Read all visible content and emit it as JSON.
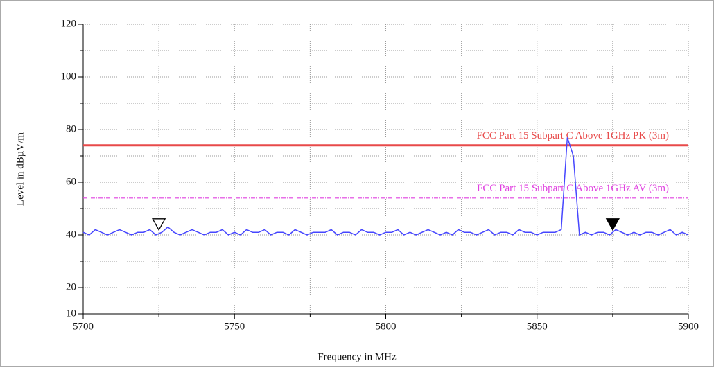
{
  "chart_data": {
    "type": "line",
    "xlabel": "Frequency in MHz",
    "ylabel": "Level in dBµV/m",
    "xlim": [
      5700,
      5900
    ],
    "xticks": [
      5700,
      5750,
      5800,
      5850,
      5900
    ],
    "xminor": [
      5725,
      5775,
      5825,
      5875
    ],
    "ylim": [
      10,
      120
    ],
    "yticks": [
      10,
      20,
      40,
      60,
      80,
      100,
      120
    ],
    "yminor": [
      30,
      50,
      70,
      90,
      110
    ],
    "grid": true,
    "limits": [
      {
        "name": "FCC Part 15 Subpart C Above 1GHz  PK (3m)",
        "value": 74,
        "color": "#e84a4a",
        "dash": "none"
      },
      {
        "name": "FCC Part 15 Subpart C Above 1GHz  AV (3m)",
        "value": 54,
        "color": "#e040e0",
        "dash": "6 2 1 2"
      }
    ],
    "markers": [
      {
        "x": 5725,
        "y": 44,
        "filled": false
      },
      {
        "x": 5875,
        "y": 44,
        "filled": true
      }
    ],
    "series": [
      {
        "color": "#4646ff",
        "x": [
          5700,
          5702,
          5704,
          5706,
          5708,
          5710,
          5712,
          5714,
          5716,
          5718,
          5720,
          5722,
          5724,
          5726,
          5728,
          5730,
          5732,
          5734,
          5736,
          5738,
          5740,
          5742,
          5744,
          5746,
          5748,
          5750,
          5752,
          5754,
          5756,
          5758,
          5760,
          5762,
          5764,
          5766,
          5768,
          5770,
          5772,
          5774,
          5776,
          5778,
          5780,
          5782,
          5784,
          5786,
          5788,
          5790,
          5792,
          5794,
          5796,
          5798,
          5800,
          5802,
          5804,
          5806,
          5808,
          5810,
          5812,
          5814,
          5816,
          5818,
          5820,
          5822,
          5824,
          5826,
          5828,
          5830,
          5832,
          5834,
          5836,
          5838,
          5840,
          5842,
          5844,
          5846,
          5848,
          5850,
          5852,
          5854,
          5856,
          5858,
          5860,
          5862,
          5864,
          5866,
          5868,
          5870,
          5872,
          5874,
          5876,
          5878,
          5880,
          5882,
          5884,
          5886,
          5888,
          5890,
          5892,
          5894,
          5896,
          5898,
          5900
        ],
        "values": [
          41,
          40,
          42,
          41,
          40,
          41,
          42,
          41,
          40,
          41,
          41,
          42,
          40,
          41,
          43,
          41,
          40,
          41,
          42,
          41,
          40,
          41,
          41,
          42,
          40,
          41,
          40,
          42,
          41,
          41,
          42,
          40,
          41,
          41,
          40,
          42,
          41,
          40,
          41,
          41,
          41,
          42,
          40,
          41,
          41,
          40,
          42,
          41,
          41,
          40,
          41,
          41,
          42,
          40,
          41,
          40,
          41,
          42,
          41,
          40,
          41,
          40,
          42,
          41,
          41,
          40,
          41,
          42,
          40,
          41,
          41,
          40,
          42,
          41,
          41,
          40,
          41,
          41,
          41,
          42,
          77,
          70,
          40,
          41,
          40,
          41,
          41,
          40,
          42,
          41,
          40,
          41,
          40,
          41,
          41,
          40,
          41,
          42,
          40,
          41,
          40
        ]
      }
    ]
  }
}
